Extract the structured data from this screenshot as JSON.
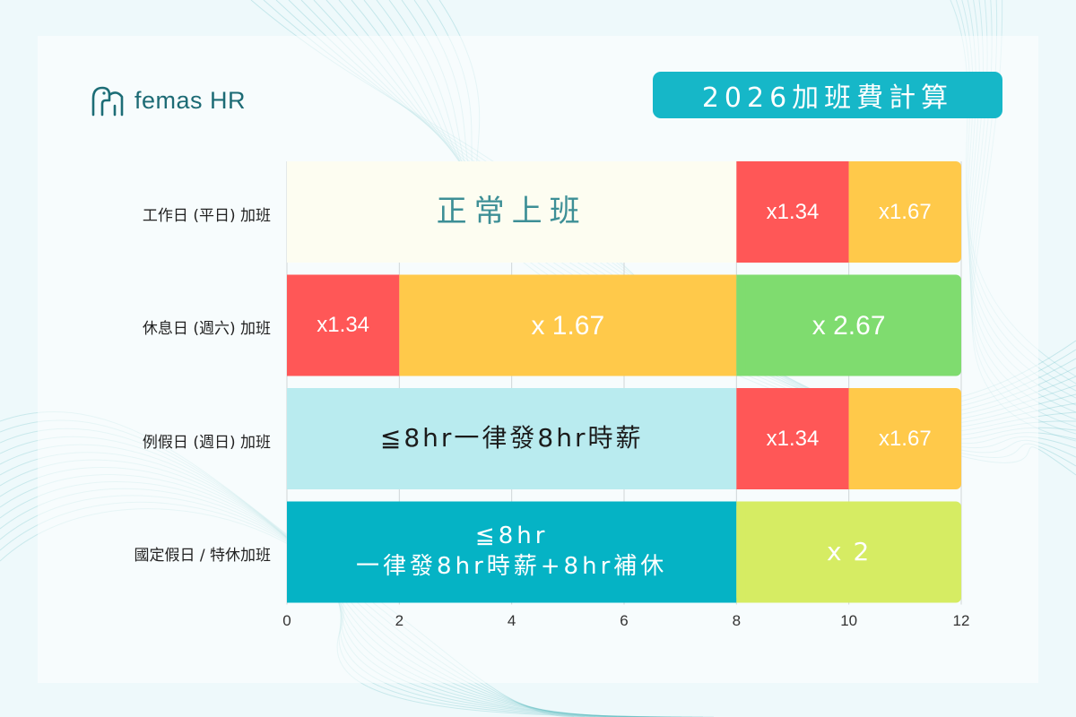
{
  "brand": {
    "name": "femas HR"
  },
  "header": {
    "title": "2026加班費計算"
  },
  "colors": {
    "normal": "#fdfdf1",
    "rate_134": "#ff5757",
    "rate_167": "#ffc94a",
    "rate_267": "#7fdc6f",
    "light_cyan": "#b9ebef",
    "teal": "#05b3c5",
    "lime": "#d6ec63"
  },
  "chart_data": {
    "type": "bar",
    "orientation": "horizontal",
    "stacked": true,
    "xlim": [
      0,
      12
    ],
    "x_ticks": [
      "0",
      "2",
      "4",
      "6",
      "8",
      "10",
      "12"
    ],
    "grid": true,
    "categories": [
      "工作日 (平日) 加班",
      "休息日 (週六) 加班",
      "例假日 (週日) 加班",
      "國定假日 / 特休加班"
    ],
    "rows": [
      {
        "label": "工作日 (平日) 加班",
        "segments": [
          {
            "start": 0,
            "end": 8,
            "text": "正常上班",
            "color": "normal",
            "text_color": "#3d8f96",
            "size": 34,
            "spacing": 8
          },
          {
            "start": 8,
            "end": 10,
            "text": "x1.34",
            "color": "rate_134",
            "text_color": "#ffffff",
            "size": 24,
            "spacing": 0
          },
          {
            "start": 10,
            "end": 12,
            "text": "x1.67",
            "color": "rate_167",
            "text_color": "#ffffff",
            "size": 24,
            "spacing": 0
          }
        ]
      },
      {
        "label": "休息日 (週六) 加班",
        "segments": [
          {
            "start": 0,
            "end": 2,
            "text": "x1.34",
            "color": "rate_134",
            "text_color": "#ffffff",
            "size": 24,
            "spacing": 0
          },
          {
            "start": 2,
            "end": 8,
            "text": "x 1.67",
            "color": "rate_167",
            "text_color": "#ffffff",
            "size": 30,
            "spacing": 0
          },
          {
            "start": 8,
            "end": 12,
            "text": "x 2.67",
            "color": "rate_267",
            "text_color": "#ffffff",
            "size": 30,
            "spacing": 0
          }
        ]
      },
      {
        "label": "例假日 (週日) 加班",
        "segments": [
          {
            "start": 0,
            "end": 8,
            "text": "≦8hr一律發8hr時薪",
            "color": "light_cyan",
            "text_color": "#1b1b1b",
            "size": 28,
            "spacing": 3
          },
          {
            "start": 8,
            "end": 10,
            "text": "x1.34",
            "color": "rate_134",
            "text_color": "#ffffff",
            "size": 24,
            "spacing": 0
          },
          {
            "start": 10,
            "end": 12,
            "text": "x1.67",
            "color": "rate_167",
            "text_color": "#ffffff",
            "size": 24,
            "spacing": 0
          }
        ]
      },
      {
        "label": "國定假日 / 特休加班",
        "segments": [
          {
            "start": 0,
            "end": 8,
            "text": "≦8hr\n一律發8hr時薪+8hr補休",
            "color": "teal",
            "text_color": "#ffffff",
            "size": 26,
            "spacing": 4
          },
          {
            "start": 8,
            "end": 12,
            "text": "x 2",
            "color": "lime",
            "text_color": "#ffffff",
            "size": 28,
            "spacing": 2
          }
        ]
      }
    ]
  }
}
